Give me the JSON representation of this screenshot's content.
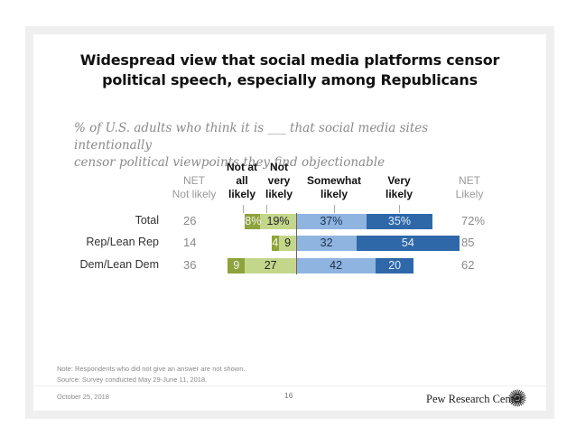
{
  "slide": {
    "title_line1": "Widespread view that social media platforms censor",
    "title_line2": "political speech, especially among Republicans",
    "subtitle_line1": "% of U.S. adults who think it is ___ that social media sites intentionally",
    "subtitle_line2": "censor political viewpoints they find objectionable",
    "note": "Note: Respondents who did not give an answer are not shown.",
    "source": "Source: Survey conducted May 29-June 11, 2018.",
    "date": "October 25, 2018",
    "page_number": "16",
    "brand": "Pew Research Center",
    "brand_logo_icon": "pew-sunburst-logo"
  },
  "headers": {
    "net_not_likely": [
      "NET",
      "Not likely"
    ],
    "not_at_all": [
      "Not at",
      "all",
      "likely"
    ],
    "not_very": [
      "Not",
      "very",
      "likely"
    ],
    "somewhat": [
      "Somewhat",
      "likely"
    ],
    "very": [
      "Very",
      "likely"
    ],
    "net_likely": [
      "NET",
      "Likely"
    ]
  },
  "chart_data": {
    "type": "bar",
    "orientation": "horizontal-diverging",
    "title": "Widespread view that social media platforms censor political speech, especially among Republicans",
    "subtitle": "% of U.S. adults who think it is ___ that social media sites intentionally censor political viewpoints they find objectionable",
    "categories": [
      "Total",
      "Rep/Lean Rep",
      "Dem/Lean Dem"
    ],
    "series": [
      {
        "name": "Not at all likely",
        "side": "negative",
        "color": "#8ea23e",
        "values": [
          8,
          4,
          9
        ],
        "labels": [
          "8%",
          "4",
          "9"
        ],
        "label_color": "#f4f7e6"
      },
      {
        "name": "Not very likely",
        "side": "negative",
        "color": "#c3d68a",
        "values": [
          19,
          9,
          27
        ],
        "labels": [
          "19%",
          "9",
          "27"
        ],
        "label_color": "#222222"
      },
      {
        "name": "Somewhat likely",
        "side": "positive",
        "color": "#8fb4e0",
        "values": [
          37,
          32,
          42
        ],
        "labels": [
          "37%",
          "32",
          "42"
        ],
        "label_color": "#1f3050"
      },
      {
        "name": "Very likely",
        "side": "positive",
        "color": "#2f68a8",
        "values": [
          35,
          54,
          20
        ],
        "labels": [
          "35%",
          "54",
          "20"
        ],
        "label_color": "#e6eef8"
      }
    ],
    "net_not_likely": {
      "header": "NET Not likely",
      "values": [
        "26",
        "14",
        "36"
      ]
    },
    "net_likely": {
      "header": "NET Likely",
      "values": [
        "72%",
        "85",
        "62"
      ]
    },
    "xlabel": "",
    "ylabel": "",
    "grid": false,
    "legend": "column headers above bars"
  }
}
